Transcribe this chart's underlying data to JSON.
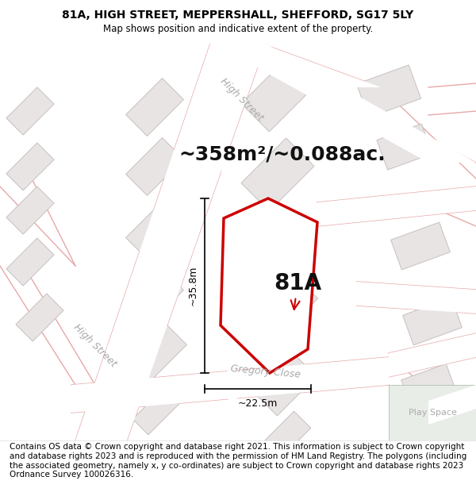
{
  "title_line1": "81A, HIGH STREET, MEPPERSHALL, SHEFFORD, SG17 5LY",
  "title_line2": "Map shows position and indicative extent of the property.",
  "footer_text": "Contains OS data © Crown copyright and database right 2021. This information is subject to Crown copyright and database rights 2023 and is reproduced with the permission of HM Land Registry. The polygons (including the associated geometry, namely x, y co-ordinates) are subject to Crown copyright and database rights 2023 Ordnance Survey 100026316.",
  "area_label": "~358m²/~0.088ac.",
  "label_81A": "81A",
  "dim_vertical": "~35.8m",
  "dim_horizontal": "~22.5m",
  "play_space_label": "Play Space",
  "high_street_label1": "High Street",
  "high_street_label2": "High Street",
  "gregory_close_label": "Gregory Close",
  "bg_color": "#f5f0f0",
  "map_bg": "#f5f0f0",
  "road_color": "#e8a8a8",
  "building_fill": "#e8e4e4",
  "building_edge": "#c8c0c0",
  "plot_outline_color": "#cc0000",
  "title_fontsize": 10,
  "footer_fontsize": 7.5,
  "area_fontsize": 18,
  "label_fontsize": 20,
  "street_fontsize": 9,
  "play_space_fontsize": 8
}
